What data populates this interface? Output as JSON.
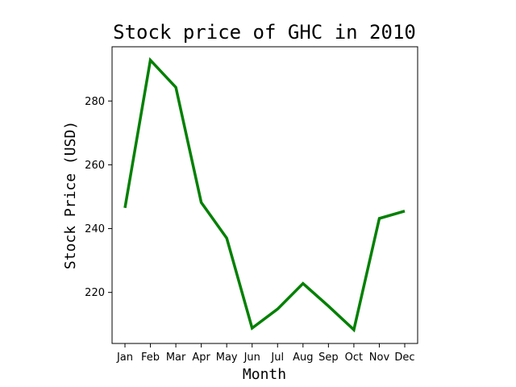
{
  "chart_data": {
    "type": "line",
    "title": "Stock price of GHC in 2010",
    "xlabel": "Month",
    "ylabel": "Stock Price (USD)",
    "categories": [
      "Jan",
      "Feb",
      "Mar",
      "Apr",
      "May",
      "Jun",
      "Jul",
      "Aug",
      "Sep",
      "Oct",
      "Nov",
      "Dec"
    ],
    "series": [
      {
        "values": [
          246.5,
          292.8,
          284.3,
          248.2,
          237.0,
          208.8,
          214.8,
          222.8,
          215.7,
          208.3,
          243.2,
          245.5
        ],
        "color": "#008000"
      }
    ],
    "yticks": [
      220,
      240,
      260,
      280
    ],
    "ylim": [
      204.0,
      297.0
    ],
    "grid": false,
    "legend": "none"
  }
}
